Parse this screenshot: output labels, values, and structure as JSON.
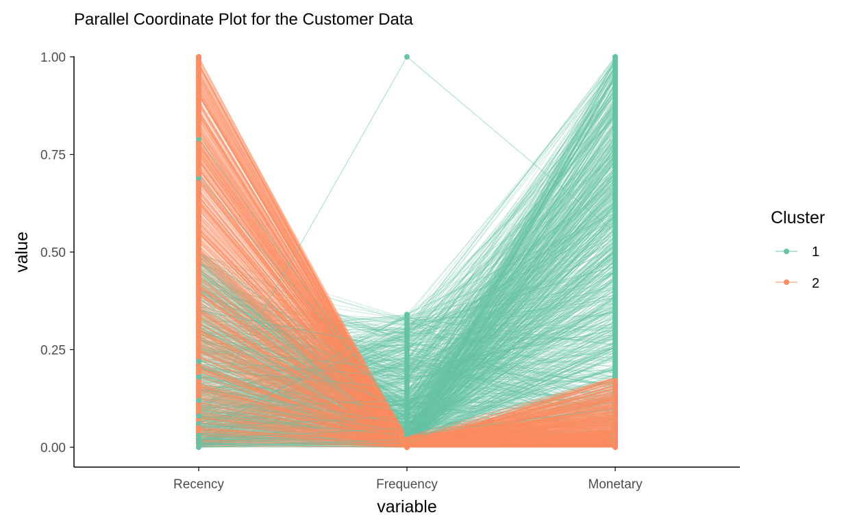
{
  "chart_data": {
    "type": "line",
    "title": "Parallel Coordinate Plot for the Customer Data",
    "xlabel": "variable",
    "ylabel": "value",
    "categories": [
      "Recency",
      "Frequency",
      "Monetary"
    ],
    "ylim": [
      0,
      1
    ],
    "yticks": [
      "0.00",
      "0.25",
      "0.50",
      "0.75",
      "1.00"
    ],
    "ytick_values": [
      0,
      0.25,
      0.5,
      0.75,
      1
    ],
    "grid": false,
    "legend": {
      "title": "Cluster",
      "position": "right",
      "entries": [
        "1",
        "2"
      ]
    },
    "series": [
      {
        "name": "1",
        "color": "#66c2a5",
        "description": "Cluster 1 customers: low Recency, low-to-moderate Frequency, Monetary spread across 0 to 1",
        "sample_lines": [
          [
            0.0,
            0.02,
            0.95
          ],
          [
            0.02,
            0.05,
            0.88
          ],
          [
            0.05,
            0.08,
            0.75
          ],
          [
            0.1,
            0.12,
            0.62
          ],
          [
            0.15,
            0.06,
            0.5
          ],
          [
            0.2,
            0.15,
            0.4
          ],
          [
            0.25,
            0.2,
            0.3
          ],
          [
            0.3,
            0.1,
            0.7
          ],
          [
            0.35,
            0.25,
            0.85
          ],
          [
            0.05,
            0.3,
            1.0
          ],
          [
            0.03,
            0.34,
            0.6
          ],
          [
            0.12,
            0.04,
            0.2
          ],
          [
            0.08,
            0.03,
            0.1
          ],
          [
            0.18,
            0.09,
            0.55
          ],
          [
            0.4,
            0.14,
            0.78
          ],
          [
            0.45,
            0.07,
            0.92
          ],
          [
            0.5,
            0.11,
            0.66
          ],
          [
            0.22,
            0.18,
            0.35
          ],
          [
            0.01,
            0.01,
            0.25
          ],
          [
            0.06,
            1.0,
            0.55
          ],
          [
            0.79,
            0.05,
            0.45
          ],
          [
            0.69,
            0.08,
            0.58
          ]
        ]
      },
      {
        "name": "2",
        "color": "#fc8d62",
        "description": "Cluster 2 customers: Recency spread from 0 to 1, Frequency near 0, Monetary mostly near 0",
        "sample_lines": [
          [
            1.0,
            0.0,
            0.02
          ],
          [
            0.95,
            0.01,
            0.05
          ],
          [
            0.9,
            0.02,
            0.01
          ],
          [
            0.85,
            0.0,
            0.08
          ],
          [
            0.8,
            0.01,
            0.03
          ],
          [
            0.75,
            0.02,
            0.1
          ],
          [
            0.7,
            0.0,
            0.04
          ],
          [
            0.65,
            0.01,
            0.12
          ],
          [
            0.6,
            0.02,
            0.02
          ],
          [
            0.55,
            0.0,
            0.06
          ],
          [
            0.5,
            0.01,
            0.15
          ],
          [
            0.45,
            0.02,
            0.01
          ],
          [
            0.4,
            0.0,
            0.07
          ],
          [
            0.35,
            0.01,
            0.17
          ],
          [
            0.3,
            0.02,
            0.03
          ],
          [
            0.25,
            0.0,
            0.09
          ],
          [
            0.2,
            0.01,
            0.05
          ],
          [
            0.15,
            0.02,
            0.11
          ],
          [
            0.1,
            0.0,
            0.02
          ],
          [
            0.05,
            0.01,
            0.04
          ],
          [
            0.98,
            0.0,
            0.13
          ],
          [
            0.88,
            0.01,
            0.0
          ]
        ]
      }
    ]
  }
}
